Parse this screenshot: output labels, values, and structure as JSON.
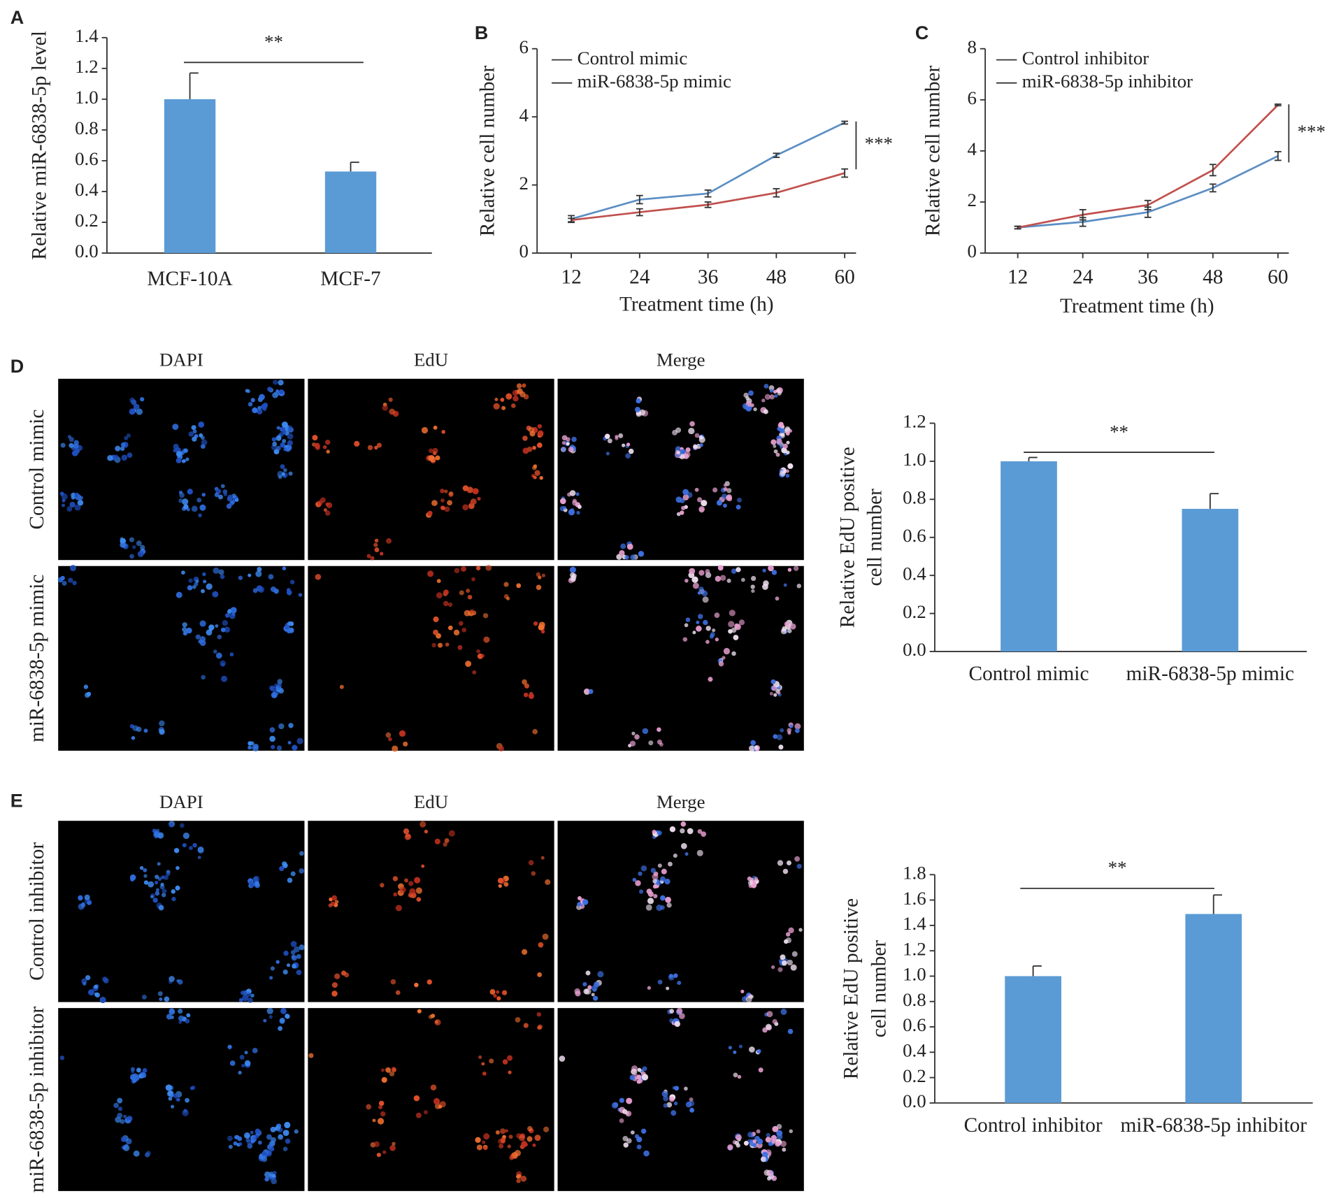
{
  "panel_labels": [
    "A",
    "B",
    "C",
    "D",
    "E"
  ],
  "image_panels": [
    {
      "columns": [
        "DAPI",
        "EdU",
        "Merge"
      ],
      "rows": [
        "Control mimic",
        "miR-6838-5p mimic"
      ]
    },
    {
      "columns": [
        "DAPI",
        "EdU",
        "Merge"
      ],
      "rows": [
        "Control inhibitor",
        "miR-6838-5p inhibitor"
      ]
    }
  ],
  "chart_data": [
    {
      "type": "bar",
      "y_label": [
        "Relative miR-6838-5p level"
      ],
      "categories": [
        "MCF-10A",
        "MCF-7"
      ],
      "values": [
        1.0,
        0.53
      ],
      "errors": [
        0.17,
        0.06
      ],
      "color": "#5b9bd5",
      "ylim": [
        0,
        1.4
      ],
      "yticks": [
        {
          "value": 0,
          "label": "0.0"
        },
        0.2,
        0.4,
        0.6,
        0.8,
        {
          "value": 1,
          "label": "1.0"
        },
        1.2,
        1.4
      ],
      "annotation": "**"
    },
    {
      "type": "line",
      "y_label": [
        "Relative cell number"
      ],
      "x_label": "Treatment time (h)",
      "x": [
        12,
        24,
        36,
        48,
        60
      ],
      "xlim": [
        6,
        62
      ],
      "xticks": [
        12,
        24,
        36,
        48,
        60
      ],
      "ylim": [
        0,
        6
      ],
      "yticks": [
        0,
        2,
        4,
        6
      ],
      "series": [
        {
          "name": "Control mimic",
          "color": "#5b8ec4",
          "values": [
            1.0,
            1.57,
            1.75,
            2.87,
            3.83
          ],
          "errors": [
            0.1,
            0.12,
            0.1,
            0.06,
            0.04
          ]
        },
        {
          "name": "miR-6838-5p mimic",
          "color": "#c0504d",
          "values": [
            0.97,
            1.2,
            1.42,
            1.77,
            2.35
          ],
          "errors": [
            0.05,
            0.1,
            0.08,
            0.12,
            0.12
          ]
        }
      ],
      "annotation": "***"
    },
    {
      "type": "line",
      "y_label": [
        "Relative cell number"
      ],
      "x_label": "Treatment time (h)",
      "x": [
        12,
        24,
        36,
        48,
        60
      ],
      "xlim": [
        6,
        62
      ],
      "xticks": [
        12,
        24,
        36,
        48,
        60
      ],
      "ylim": [
        0,
        8
      ],
      "yticks": [
        0,
        2,
        4,
        6,
        8
      ],
      "series": [
        {
          "name": "Control inhibitor",
          "color": "#5b8ec4",
          "values": [
            1.0,
            1.22,
            1.6,
            2.55,
            3.8
          ],
          "errors": [
            0.05,
            0.17,
            0.2,
            0.15,
            0.17
          ]
        },
        {
          "name": "miR-6838-5p inhibitor",
          "color": "#c0504d",
          "values": [
            1.0,
            1.5,
            1.88,
            3.25,
            5.8
          ],
          "errors": [
            0.05,
            0.2,
            0.18,
            0.22,
            0.03
          ]
        }
      ],
      "annotation": "***"
    },
    {
      "type": "bar",
      "y_label": [
        "Relative EdU positive",
        "cell number"
      ],
      "categories": [
        "Control mimic",
        "miR-6838-5p mimic"
      ],
      "values": [
        1.0,
        0.75
      ],
      "errors": [
        0.02,
        0.08
      ],
      "color": "#5b9bd5",
      "ylim": [
        0,
        1.2
      ],
      "yticks": [
        {
          "value": 0,
          "label": "0.0"
        },
        0.2,
        0.4,
        0.6,
        0.8,
        {
          "value": 1,
          "label": "1.0"
        },
        1.2
      ],
      "annotation": "**"
    },
    {
      "type": "bar",
      "y_label": [
        "Relative EdU positive",
        "cell number"
      ],
      "categories": [
        "Control inhibitor",
        "miR-6838-5p inhibitor"
      ],
      "values": [
        1.0,
        1.49
      ],
      "errors": [
        0.08,
        0.15
      ],
      "color": "#5b9bd5",
      "ylim": [
        0,
        1.8
      ],
      "yticks": [
        {
          "value": 0,
          "label": "0.0"
        },
        0.2,
        0.4,
        0.6,
        0.8,
        {
          "value": 1,
          "label": "1.0"
        },
        1.2,
        1.4,
        1.6,
        1.8
      ],
      "annotation": "**"
    }
  ]
}
